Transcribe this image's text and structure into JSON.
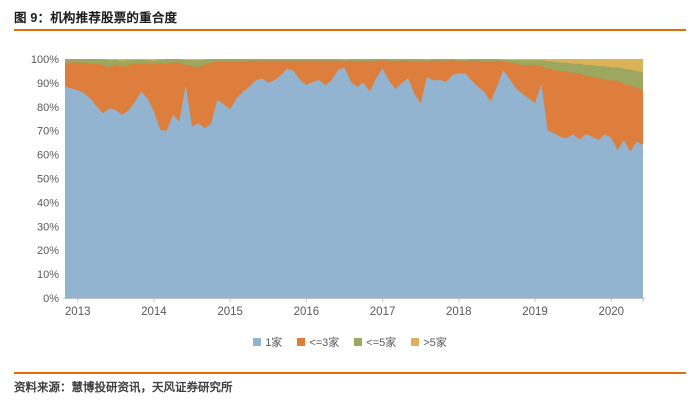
{
  "figure": {
    "title": "图 9：机构推荐股票的重合度",
    "source": "资料来源：慧博投研资讯，天风证券研究所"
  },
  "colors": {
    "divider_rule": "#E36C09",
    "axis_text": "#595959",
    "axis_line": "#bfbfbf",
    "title_text": "#1a1a1a",
    "source_text": "#404040"
  },
  "chart_data": {
    "type": "area",
    "stacked": true,
    "unit": "%",
    "grid": false,
    "legend_position": "bottom",
    "x_frequency": "monthly",
    "x_start": "2012-11",
    "x_end": "2020-06",
    "x_tick_labels": [
      "2013",
      "2014",
      "2015",
      "2016",
      "2017",
      "2018",
      "2019",
      "2020"
    ],
    "x_tick_month_index": [
      2,
      14,
      26,
      38,
      50,
      62,
      74,
      86
    ],
    "y_ticks": [
      "0%",
      "10%",
      "20%",
      "30%",
      "40%",
      "50%",
      "60%",
      "70%",
      "80%",
      "90%",
      "100%"
    ],
    "ylim": [
      0,
      100
    ],
    "series": [
      {
        "name": "1家",
        "color": "#92B4D1",
        "values": [
          88.4,
          87.7,
          87,
          85.6,
          83.5,
          80,
          77.3,
          79.4,
          78.7,
          76.6,
          78.5,
          82,
          86.3,
          83.5,
          78,
          70.3,
          70,
          76.6,
          73.8,
          89,
          71.7,
          73.1,
          71,
          73,
          83,
          81,
          79,
          83.5,
          86.3,
          88.4,
          91,
          91.9,
          90,
          91.2,
          93.3,
          96,
          95,
          91.2,
          89.1,
          90.5,
          91.2,
          89.1,
          91.2,
          95.4,
          96.5,
          90.5,
          88.4,
          90,
          86.3,
          92,
          96.1,
          91,
          87.5,
          89.8,
          92,
          85.5,
          81.5,
          92.6,
          91,
          91.2,
          90.5,
          93.3,
          94,
          94,
          91,
          88.4,
          86.3,
          82.1,
          88.4,
          95.4,
          91.5,
          87.7,
          85.5,
          83.5,
          81.5,
          89.5,
          70,
          68.9,
          67.5,
          66.8,
          68.5,
          66.3,
          68.5,
          67.5,
          66.1,
          68.5,
          67,
          61.9,
          66,
          61.2,
          65.5,
          64
        ]
      },
      {
        "name": "<=3家",
        "color": "#DD7E3D",
        "values": [
          10.1,
          10.8,
          11.5,
          12.9,
          14.5,
          18,
          20.2,
          17.1,
          19,
          20.1,
          19,
          16.2,
          11.9,
          14.5,
          19.7,
          27.9,
          28,
          21.9,
          24.7,
          8.5,
          25.3,
          23.4,
          26.7,
          25.5,
          16,
          18,
          20,
          15.5,
          12.7,
          10.8,
          8.2,
          7.3,
          9.2,
          8,
          5.9,
          3.2,
          4.2,
          8,
          10.1,
          8.7,
          8,
          10.1,
          8,
          3.8,
          2.7,
          8.7,
          10.6,
          9.2,
          12.7,
          7.2,
          3.4,
          8.2,
          11.5,
          9.4,
          7.2,
          13.5,
          17.5,
          6.6,
          8.2,
          8,
          8.7,
          6.2,
          5.2,
          5.2,
          8.2,
          10.8,
          12.7,
          16.9,
          10.8,
          3.8,
          7,
          10.3,
          12,
          14,
          16,
          7.5,
          26,
          26.6,
          27.5,
          28.2,
          25.5,
          27.7,
          24.5,
          25,
          25.9,
          23,
          24,
          29.1,
          23.5,
          27.8,
          22.5,
          23
        ]
      },
      {
        "name": "<=5家",
        "color": "#9CA75F",
        "values": [
          1.5,
          1.5,
          1.5,
          1.5,
          2,
          2,
          2.5,
          3,
          2,
          2.5,
          2,
          1.5,
          1.5,
          1.5,
          1.5,
          1.5,
          2,
          1.5,
          1.5,
          2,
          2.5,
          3,
          2,
          1.5,
          1,
          1,
          1,
          1,
          1,
          0.8,
          0.8,
          0.8,
          0.8,
          0.8,
          0.8,
          0.8,
          0.8,
          0.8,
          0.8,
          0.8,
          0.8,
          0.8,
          0.8,
          0.8,
          0.5,
          0.8,
          1,
          0.8,
          1,
          0.8,
          0.5,
          0.8,
          1,
          0.8,
          0.8,
          1,
          1,
          0.5,
          0.8,
          0.8,
          0.8,
          0.5,
          0.5,
          0.5,
          0.8,
          0.8,
          1,
          1,
          0.8,
          0.5,
          1,
          1.5,
          2,
          2,
          2,
          2.5,
          3,
          3.5,
          3.5,
          3.5,
          4,
          4,
          4.5,
          5,
          5,
          5.5,
          5.5,
          5.5,
          6.5,
          6.5,
          7,
          7.5
        ]
      },
      {
        "name": ">5家",
        "color": "#DAB257",
        "values": [
          0,
          0,
          0,
          0,
          0,
          0,
          0,
          0.5,
          0.3,
          0.8,
          0.5,
          0.3,
          0.3,
          0.5,
          0.8,
          0.3,
          0,
          0,
          0,
          0.5,
          0.5,
          0.5,
          0.3,
          0,
          0,
          0,
          0,
          0,
          0,
          0,
          0,
          0,
          0,
          0,
          0,
          0,
          0,
          0,
          0,
          0,
          0,
          0,
          0,
          0,
          0.3,
          0,
          0,
          0,
          0,
          0,
          0,
          0,
          0,
          0,
          0,
          0,
          0,
          0.3,
          0,
          0,
          0,
          0,
          0.3,
          0.3,
          0,
          0,
          0,
          0,
          0,
          0.3,
          0.5,
          0.5,
          0.5,
          0.5,
          0.5,
          0.5,
          1,
          1,
          1.5,
          1.5,
          2,
          2,
          2.5,
          2.5,
          3,
          3,
          3.5,
          3.5,
          4,
          4.5,
          5,
          5.5
        ]
      }
    ]
  }
}
